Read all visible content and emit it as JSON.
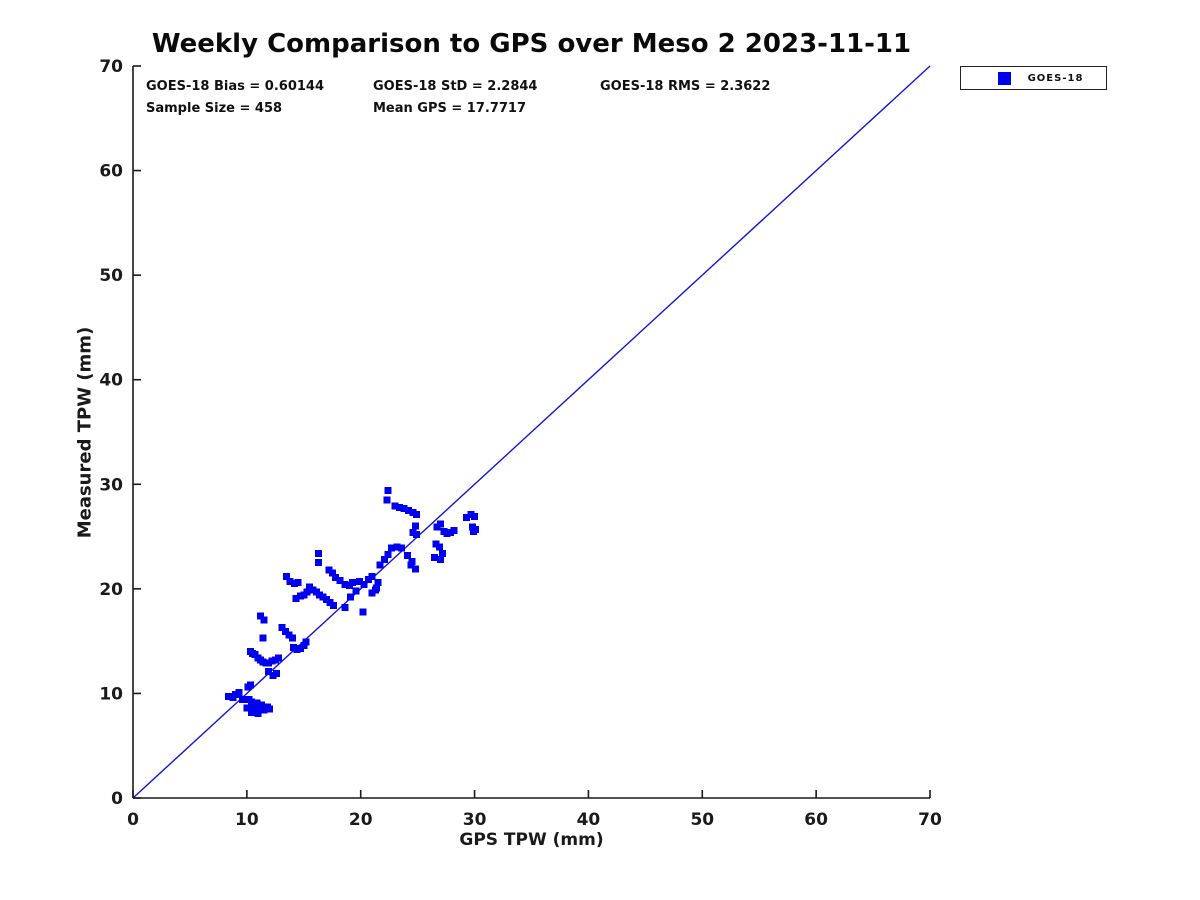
{
  "chart_data": {
    "type": "scatter",
    "title": "Weekly Comparison to GPS over Meso 2 2023-11-11",
    "xlabel": "GPS TPW (mm)",
    "ylabel": "Measured TPW (mm)",
    "xlim": [
      0,
      70
    ],
    "ylim": [
      0,
      70
    ],
    "xticks": [
      0,
      10,
      20,
      30,
      40,
      50,
      60,
      70
    ],
    "yticks": [
      0,
      10,
      20,
      30,
      40,
      50,
      60,
      70
    ],
    "grid": false,
    "axis_color": "#1a1a1a",
    "background": "#ffffff",
    "stats": {
      "line1": [
        "GOES-18 Bias = 0.60144",
        "GOES-18 StD = 2.2844",
        "GOES-18 RMS = 2.3622"
      ],
      "line2": [
        "Sample Size = 458",
        "Mean GPS = 17.7717"
      ],
      "bias": 0.60144,
      "std": 2.2844,
      "rms": 2.3622,
      "sample_size": 458,
      "mean_gps": 17.7717
    },
    "legend": {
      "position": "outside-top-right",
      "entries": [
        {
          "label": "GOES-18",
          "marker": "square",
          "color": "#0000ee"
        }
      ]
    },
    "reference_line": {
      "x": [
        0,
        70
      ],
      "y": [
        0,
        70
      ],
      "color": "#1414d6",
      "meaning": "1:1 line"
    },
    "series": [
      {
        "name": "GOES-18",
        "marker": "square",
        "marker_size_px": 7,
        "color": "#0000ee",
        "points": [
          [
            8.4,
            9.7
          ],
          [
            8.8,
            9.6
          ],
          [
            9.0,
            9.9
          ],
          [
            9.3,
            10.1
          ],
          [
            9.6,
            9.4
          ],
          [
            10.1,
            10.6
          ],
          [
            10.3,
            10.8
          ],
          [
            10.0,
            8.6
          ],
          [
            10.2,
            9.4
          ],
          [
            10.4,
            9.2
          ],
          [
            10.4,
            8.2
          ],
          [
            10.6,
            8.6
          ],
          [
            10.8,
            9.0
          ],
          [
            10.9,
            9.1
          ],
          [
            11.0,
            8.1
          ],
          [
            11.2,
            8.6
          ],
          [
            11.3,
            8.9
          ],
          [
            11.5,
            8.4
          ],
          [
            11.8,
            8.7
          ],
          [
            12.0,
            8.5
          ],
          [
            10.3,
            14.0
          ],
          [
            10.5,
            13.8
          ],
          [
            10.7,
            13.7
          ],
          [
            11.0,
            13.4
          ],
          [
            11.2,
            13.2
          ],
          [
            11.4,
            13.0
          ],
          [
            11.7,
            12.9
          ],
          [
            11.9,
            12.9
          ],
          [
            12.2,
            13.1
          ],
          [
            12.5,
            13.2
          ],
          [
            12.8,
            13.4
          ],
          [
            11.9,
            12.1
          ],
          [
            12.3,
            11.7
          ],
          [
            12.6,
            11.9
          ],
          [
            11.2,
            17.4
          ],
          [
            11.5,
            17.0
          ],
          [
            11.4,
            15.3
          ],
          [
            13.1,
            16.3
          ],
          [
            13.4,
            15.9
          ],
          [
            13.7,
            15.6
          ],
          [
            14.0,
            15.3
          ],
          [
            14.1,
            14.4
          ],
          [
            14.4,
            14.2
          ],
          [
            14.7,
            14.3
          ],
          [
            15.0,
            14.6
          ],
          [
            15.2,
            14.9
          ],
          [
            13.5,
            21.2
          ],
          [
            13.8,
            20.7
          ],
          [
            14.2,
            20.5
          ],
          [
            14.5,
            20.6
          ],
          [
            14.3,
            19.1
          ],
          [
            14.7,
            19.3
          ],
          [
            15.0,
            19.4
          ],
          [
            15.3,
            19.7
          ],
          [
            15.5,
            20.2
          ],
          [
            15.8,
            19.9
          ],
          [
            16.1,
            19.7
          ],
          [
            16.4,
            19.4
          ],
          [
            16.7,
            19.2
          ],
          [
            17.0,
            19.0
          ],
          [
            17.3,
            18.7
          ],
          [
            17.6,
            18.4
          ],
          [
            16.3,
            23.4
          ],
          [
            16.3,
            22.5
          ],
          [
            17.2,
            21.8
          ],
          [
            17.5,
            21.5
          ],
          [
            17.8,
            21.1
          ],
          [
            18.2,
            20.8
          ],
          [
            18.6,
            20.4
          ],
          [
            19.0,
            20.3
          ],
          [
            19.3,
            20.6
          ],
          [
            19.6,
            19.8
          ],
          [
            19.1,
            19.2
          ],
          [
            19.9,
            20.7
          ],
          [
            20.3,
            20.4
          ],
          [
            20.7,
            20.9
          ],
          [
            21.0,
            21.2
          ],
          [
            21.5,
            20.6
          ],
          [
            18.6,
            18.2
          ],
          [
            20.2,
            17.8
          ],
          [
            21.3,
            19.9
          ],
          [
            21.0,
            19.6
          ],
          [
            21.4,
            20.1
          ],
          [
            21.7,
            22.3
          ],
          [
            22.1,
            22.8
          ],
          [
            22.4,
            23.3
          ],
          [
            22.7,
            23.9
          ],
          [
            23.2,
            24.0
          ],
          [
            23.6,
            23.9
          ],
          [
            24.1,
            23.2
          ],
          [
            24.5,
            22.6
          ],
          [
            24.4,
            22.3
          ],
          [
            24.8,
            21.9
          ],
          [
            22.4,
            29.4
          ],
          [
            22.3,
            28.5
          ],
          [
            23.0,
            27.9
          ],
          [
            23.4,
            27.8
          ],
          [
            23.8,
            27.7
          ],
          [
            24.2,
            27.5
          ],
          [
            24.6,
            27.3
          ],
          [
            24.9,
            27.1
          ],
          [
            24.8,
            26.0
          ],
          [
            24.6,
            25.4
          ],
          [
            24.9,
            25.2
          ],
          [
            26.7,
            25.9
          ],
          [
            27.0,
            26.2
          ],
          [
            27.3,
            25.5
          ],
          [
            27.6,
            25.3
          ],
          [
            27.9,
            25.4
          ],
          [
            28.2,
            25.6
          ],
          [
            26.6,
            24.3
          ],
          [
            26.9,
            24.0
          ],
          [
            27.2,
            23.4
          ],
          [
            26.5,
            23.0
          ],
          [
            27.0,
            22.8
          ],
          [
            29.3,
            26.8
          ],
          [
            29.7,
            27.1
          ],
          [
            30.0,
            26.9
          ],
          [
            29.8,
            25.9
          ],
          [
            29.9,
            25.5
          ],
          [
            30.1,
            25.7
          ]
        ]
      }
    ]
  }
}
